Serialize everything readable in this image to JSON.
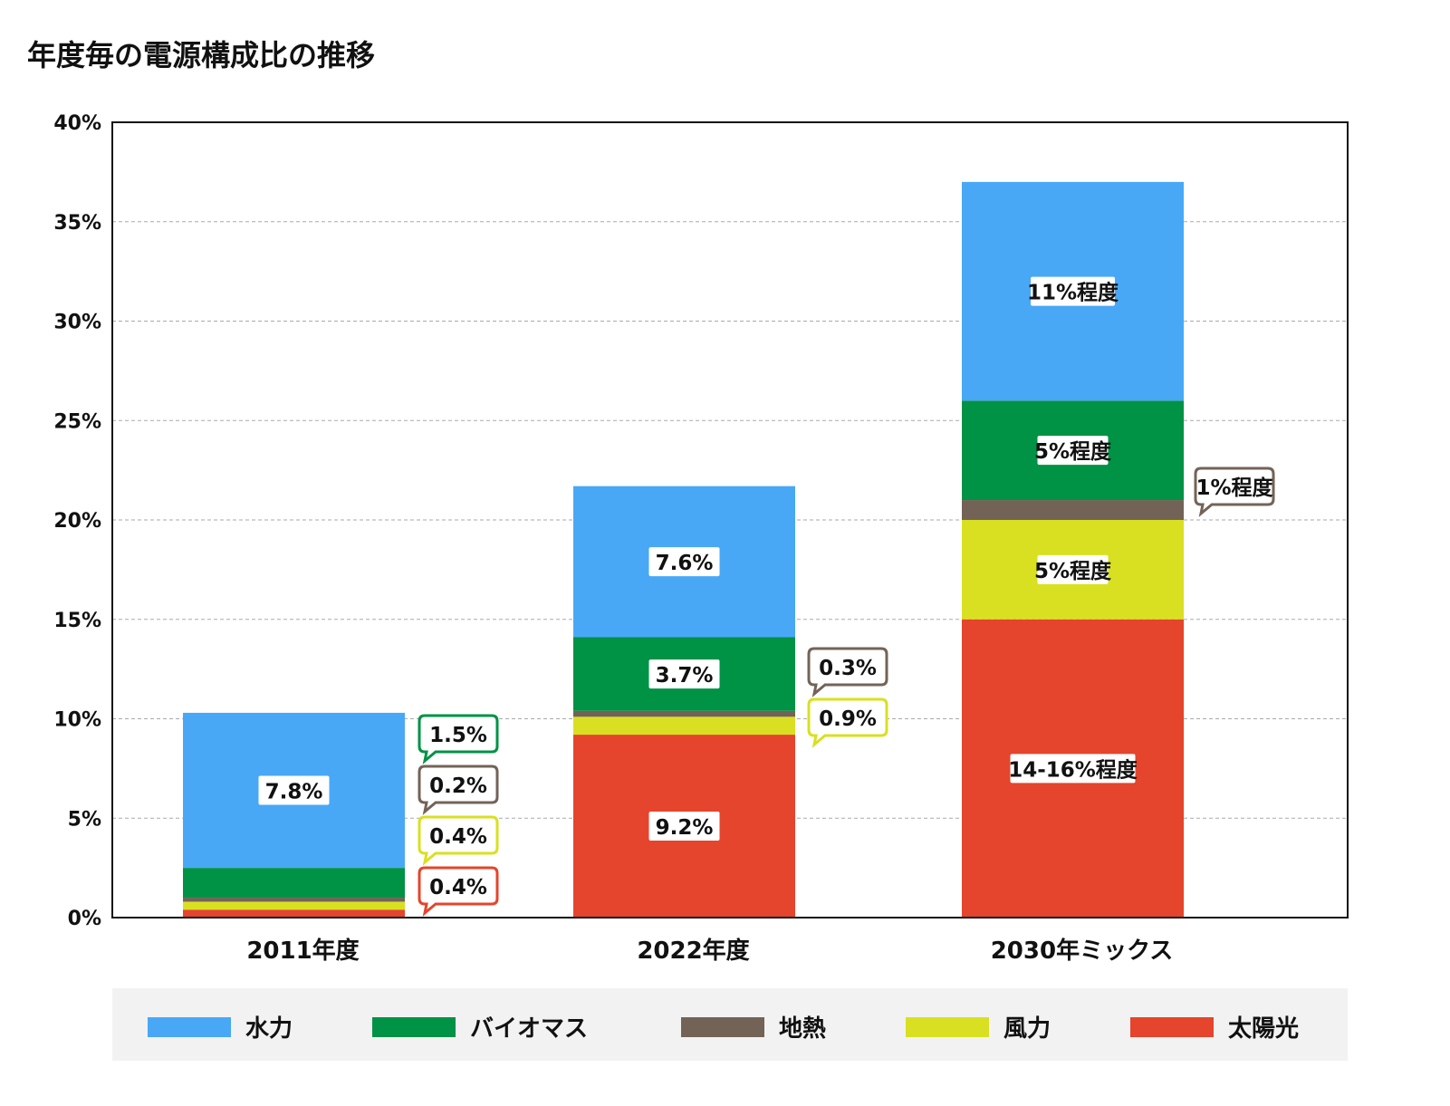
{
  "chart_data": {
    "type": "bar",
    "stacked": true,
    "title": "年度毎の電源構成比の推移",
    "xlabel": "",
    "ylabel": "",
    "ylim": [
      0,
      40
    ],
    "yticks": [
      "0%",
      "5%",
      "10%",
      "15%",
      "20%",
      "25%",
      "30%",
      "35%",
      "40%"
    ],
    "grid": true,
    "legend_position": "bottom",
    "categories": [
      "2011年度",
      "2022年度",
      "2030年ミックス"
    ],
    "series": [
      {
        "name": "太陽光",
        "color": "#e4452c",
        "values": [
          0.4,
          9.2,
          15
        ],
        "labels": [
          "0.4%",
          "9.2%",
          "14-16%程度"
        ]
      },
      {
        "name": "風力",
        "color": "#d9e021",
        "values": [
          0.4,
          0.9,
          5
        ],
        "labels": [
          "0.4%",
          "0.9%",
          "5%程度"
        ]
      },
      {
        "name": "地熱",
        "color": "#736357",
        "values": [
          0.2,
          0.3,
          1
        ],
        "labels": [
          "0.2%",
          "0.3%",
          "1%程度"
        ]
      },
      {
        "name": "バイオマス",
        "color": "#009245",
        "values": [
          1.5,
          3.7,
          5
        ],
        "labels": [
          "1.5%",
          "3.7%",
          "5%程度"
        ]
      },
      {
        "name": "水力",
        "color": "#48a8f5",
        "values": [
          7.8,
          7.6,
          11
        ],
        "labels": [
          "7.8%",
          "7.6%",
          "11%程度"
        ]
      }
    ],
    "legend_order": [
      "水力",
      "バイオマス",
      "地熱",
      "風力",
      "太陽光"
    ]
  }
}
